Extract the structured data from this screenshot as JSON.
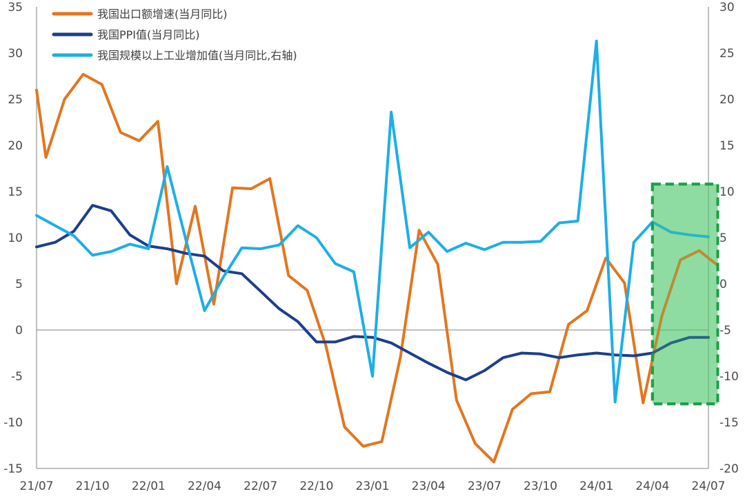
{
  "chart_data": {
    "type": "line",
    "x": [
      "21/07",
      "21/08",
      "21/09",
      "21/10",
      "21/11",
      "21/12",
      "22/01",
      "22/02",
      "22/03",
      "22/04",
      "22/05",
      "22/06",
      "22/07",
      "22/08",
      "22/09",
      "22/10",
      "22/11",
      "22/12",
      "23/01",
      "23/02",
      "23/03",
      "23/04",
      "23/05",
      "23/06",
      "23/07",
      "23/08",
      "23/09",
      "23/10",
      "23/11",
      "23/12",
      "24/01",
      "24/02",
      "24/03",
      "24/04",
      "24/05",
      "24/06",
      "24/07"
    ],
    "x_tick_labels": [
      "21/07",
      "21/10",
      "22/01",
      "22/04",
      "22/07",
      "22/10",
      "23/01",
      "23/04",
      "23/07",
      "23/10",
      "24/01",
      "24/04",
      "24/07"
    ],
    "y_left": {
      "ticks": [
        35,
        30,
        25,
        20,
        15,
        10,
        5,
        0,
        -5,
        -10,
        -15
      ],
      "ylim": [
        -15,
        35
      ]
    },
    "y_right": {
      "ticks": [
        30,
        25,
        20,
        15,
        10,
        5,
        0,
        -5,
        -10,
        -15,
        -20
      ],
      "ylim": [
        -20,
        30
      ]
    },
    "series": [
      {
        "name": "我国出口额增速(当月同比)",
        "axis": "left",
        "color": "#E2761E",
        "points": [
          [
            0,
            26
          ],
          [
            0.5,
            18.7
          ],
          [
            1.5,
            25
          ],
          [
            2.5,
            27.7
          ],
          [
            3.5,
            26.6
          ],
          [
            4.5,
            21.4
          ],
          [
            5.5,
            20.5
          ],
          [
            6.5,
            22.6
          ],
          [
            7.5,
            5
          ],
          [
            8.5,
            13.4
          ],
          [
            9.5,
            2.8
          ],
          [
            10.5,
            15.4
          ],
          [
            11.5,
            15.3
          ],
          [
            12.5,
            16.4
          ],
          [
            13.5,
            5.9
          ],
          [
            14.5,
            4.3
          ],
          [
            15.5,
            -1.7
          ],
          [
            16.5,
            -10.5
          ],
          [
            17.5,
            -12.6
          ],
          [
            18.5,
            -12.1
          ],
          [
            19.5,
            -2.9
          ],
          [
            20.5,
            10.8
          ],
          [
            21.5,
            7.1
          ],
          [
            22.5,
            -7.6
          ],
          [
            23.5,
            -12.3
          ],
          [
            24.5,
            -14.3
          ],
          [
            25.5,
            -8.6
          ],
          [
            26.5,
            -6.9
          ],
          [
            27.5,
            -6.7
          ],
          [
            28.5,
            0.6
          ],
          [
            29.5,
            2.1
          ],
          [
            30.5,
            7.8
          ],
          [
            31.5,
            5.1
          ],
          [
            32.5,
            -7.9
          ],
          [
            33.5,
            1.5
          ],
          [
            34.5,
            7.6
          ],
          [
            35.5,
            8.6
          ],
          [
            36.5,
            7.0
          ]
        ]
      },
      {
        "name": "我国PPI值(当月同比)",
        "axis": "left",
        "color": "#1B3F8B",
        "points": [
          [
            0,
            9
          ],
          [
            1,
            9.5
          ],
          [
            2,
            10.7
          ],
          [
            3,
            13.5
          ],
          [
            4,
            12.9
          ],
          [
            5,
            10.3
          ],
          [
            6,
            9.1
          ],
          [
            7,
            8.8
          ],
          [
            8,
            8.3
          ],
          [
            9,
            8
          ],
          [
            10,
            6.4
          ],
          [
            11,
            6.1
          ],
          [
            12,
            4.2
          ],
          [
            13,
            2.3
          ],
          [
            14,
            0.9
          ],
          [
            15,
            -1.3
          ],
          [
            16,
            -1.3
          ],
          [
            17,
            -0.7
          ],
          [
            18,
            -0.8
          ],
          [
            19,
            -1.4
          ],
          [
            20,
            -2.5
          ],
          [
            21,
            -3.6
          ],
          [
            22,
            -4.6
          ],
          [
            23,
            -5.4
          ],
          [
            24,
            -4.4
          ],
          [
            25,
            -3
          ],
          [
            26,
            -2.5
          ],
          [
            27,
            -2.6
          ],
          [
            28,
            -3
          ],
          [
            29,
            -2.7
          ],
          [
            30,
            -2.5
          ],
          [
            31,
            -2.7
          ],
          [
            32,
            -2.8
          ],
          [
            33,
            -2.5
          ],
          [
            34,
            -1.4
          ],
          [
            35,
            -0.8
          ],
          [
            36,
            -0.8
          ]
        ]
      },
      {
        "name": "我国规模以上工业增加值(当月同比,右轴)",
        "axis": "right",
        "color": "#1DAEE6",
        "points": [
          [
            0,
            7.4
          ],
          [
            1,
            6.3
          ],
          [
            2,
            5.2
          ],
          [
            3,
            3.1
          ],
          [
            4,
            3.5
          ],
          [
            5,
            4.3
          ],
          [
            6,
            3.8
          ],
          [
            7,
            12.7
          ],
          [
            8,
            4.8
          ],
          [
            9,
            -2.9
          ],
          [
            10,
            0.7
          ],
          [
            11,
            3.9
          ],
          [
            12,
            3.8
          ],
          [
            13,
            4.2
          ],
          [
            14,
            6.3
          ],
          [
            15,
            5
          ],
          [
            16,
            2.2
          ],
          [
            17,
            1.3
          ],
          [
            18,
            -10
          ],
          [
            19,
            18.6
          ],
          [
            20,
            3.9
          ],
          [
            21,
            5.6
          ],
          [
            22,
            3.5
          ],
          [
            23,
            4.4
          ],
          [
            24,
            3.7
          ],
          [
            25,
            4.5
          ],
          [
            26,
            4.5
          ],
          [
            27,
            4.6
          ],
          [
            28,
            6.6
          ],
          [
            29,
            6.8
          ],
          [
            30,
            26.3
          ],
          [
            31,
            -12.8
          ],
          [
            32,
            4.5
          ],
          [
            33,
            6.7
          ],
          [
            34,
            5.6
          ],
          [
            35,
            5.3
          ],
          [
            36,
            5.1
          ]
        ]
      }
    ],
    "highlight": {
      "x_from": 33,
      "x_to": 36.5,
      "y_from": -8,
      "y_to": 15.8
    }
  }
}
